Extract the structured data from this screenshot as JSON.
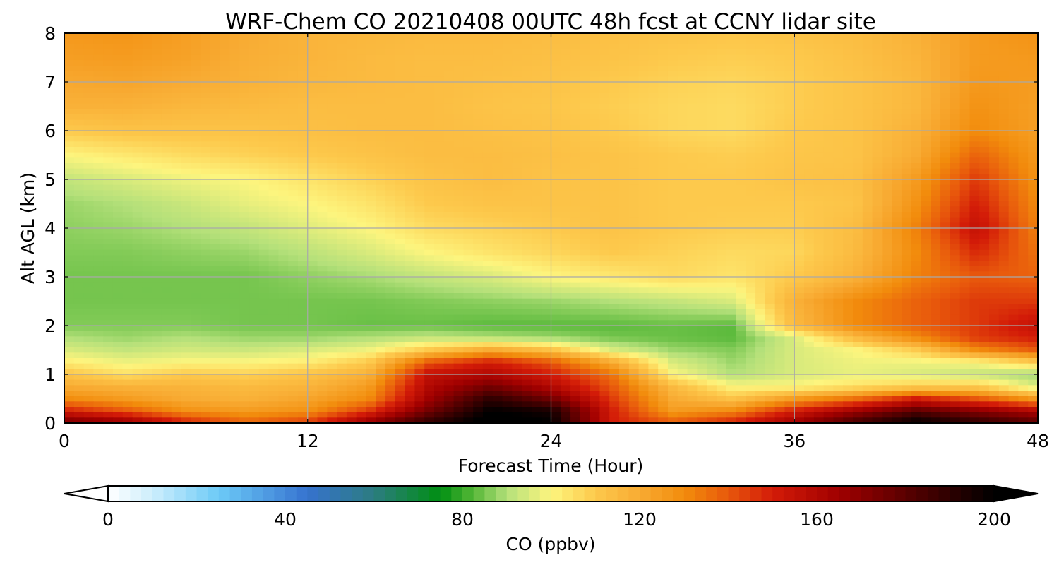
{
  "chart_data": {
    "type": "heatmap",
    "title": "WRF-Chem CO  20210408 00UTC 48h fcst at CCNY lidar site",
    "xlabel": "Forecast Time (Hour)",
    "ylabel": "Alt AGL (km)",
    "xlim": [
      0,
      48
    ],
    "ylim": [
      0,
      8
    ],
    "x_ticks": [
      0,
      12,
      24,
      36,
      48
    ],
    "y_ticks": [
      0,
      1,
      2,
      3,
      4,
      5,
      6,
      7,
      8
    ],
    "grid": true,
    "x": [
      0,
      3,
      6,
      9,
      12,
      15,
      18,
      21,
      24,
      27,
      30,
      33,
      36,
      39,
      42,
      45,
      48
    ],
    "y": [
      0,
      0.25,
      0.5,
      0.75,
      1,
      1.25,
      1.5,
      1.75,
      2,
      2.5,
      3,
      3.5,
      4,
      4.5,
      5,
      5.5,
      6,
      6.5,
      7,
      7.5,
      8
    ],
    "values": [
      [
        175,
        168,
        150,
        138,
        145,
        168,
        190,
        205,
        200,
        150,
        140,
        150,
        165,
        185,
        200,
        190,
        180
      ],
      [
        150,
        140,
        128,
        125,
        128,
        145,
        175,
        200,
        195,
        150,
        125,
        130,
        150,
        165,
        180,
        170,
        160
      ],
      [
        130,
        125,
        120,
        118,
        122,
        130,
        165,
        190,
        175,
        145,
        120,
        112,
        125,
        135,
        150,
        140,
        125
      ],
      [
        120,
        118,
        117,
        115,
        117,
        125,
        160,
        175,
        160,
        140,
        115,
        100,
        100,
        105,
        110,
        110,
        95
      ],
      [
        112,
        105,
        110,
        108,
        112,
        118,
        155,
        160,
        150,
        135,
        100,
        90,
        95,
        97,
        95,
        92,
        88
      ],
      [
        102,
        98,
        100,
        100,
        102,
        110,
        140,
        150,
        140,
        120,
        95,
        88,
        95,
        98,
        98,
        100,
        110
      ],
      [
        95,
        92,
        94,
        93,
        95,
        98,
        110,
        120,
        112,
        95,
        88,
        86,
        95,
        100,
        110,
        130,
        140
      ],
      [
        90,
        88,
        90,
        88,
        88,
        90,
        92,
        90,
        88,
        85,
        84,
        83,
        95,
        115,
        130,
        145,
        150
      ],
      [
        86,
        86,
        86,
        85,
        85,
        84,
        84,
        83,
        83,
        83,
        84,
        83,
        115,
        130,
        138,
        145,
        155
      ],
      [
        85,
        85,
        85,
        85,
        85,
        85,
        86,
        87,
        88,
        90,
        92,
        95,
        118,
        130,
        138,
        145,
        145
      ],
      [
        85,
        85,
        85,
        85,
        87,
        89,
        92,
        95,
        100,
        103,
        106,
        104,
        110,
        118,
        132,
        140,
        138
      ],
      [
        86,
        86,
        87,
        88,
        91,
        95,
        100,
        104,
        107,
        110,
        108,
        106,
        107,
        115,
        130,
        148,
        135
      ],
      [
        87,
        88,
        90,
        92,
        96,
        100,
        106,
        108,
        110,
        112,
        110,
        109,
        109,
        114,
        132,
        155,
        132
      ],
      [
        88,
        90,
        93,
        97,
        100,
        104,
        110,
        112,
        112,
        112,
        110,
        110,
        110,
        112,
        128,
        150,
        130
      ],
      [
        92,
        95,
        98,
        100,
        104,
        108,
        112,
        114,
        112,
        112,
        110,
        110,
        112,
        113,
        125,
        145,
        128
      ],
      [
        100,
        103,
        106,
        108,
        110,
        112,
        114,
        114,
        113,
        112,
        110,
        109,
        111,
        112,
        120,
        138,
        126
      ],
      [
        110,
        112,
        112,
        112,
        113,
        114,
        114,
        113,
        112,
        110,
        107,
        106,
        110,
        112,
        118,
        130,
        124
      ],
      [
        118,
        118,
        116,
        115,
        114,
        114,
        114,
        112,
        111,
        109,
        107,
        106,
        109,
        112,
        116,
        128,
        124
      ],
      [
        121,
        122,
        120,
        118,
        116,
        115,
        114,
        113,
        112,
        110,
        108,
        107,
        109,
        112,
        116,
        126,
        125
      ],
      [
        124,
        125,
        123,
        119,
        117,
        115,
        114,
        114,
        113,
        112,
        110,
        109,
        110,
        113,
        117,
        125,
        126
      ],
      [
        126,
        127,
        124,
        120,
        117,
        116,
        115,
        115,
        114,
        113,
        112,
        111,
        112,
        114,
        118,
        125,
        128
      ]
    ],
    "colorbar": {
      "label": "CO  (ppbv)",
      "min": 0,
      "max": 200,
      "ticks": [
        0,
        40,
        80,
        120,
        160,
        200
      ],
      "extend": "both",
      "color_stops": [
        {
          "v": 0,
          "c": "#ffffff"
        },
        {
          "v": 10,
          "c": "#cdeefc"
        },
        {
          "v": 25,
          "c": "#6ccaf7"
        },
        {
          "v": 45,
          "c": "#3672cf"
        },
        {
          "v": 60,
          "c": "#2c7c80"
        },
        {
          "v": 75,
          "c": "#008f12"
        },
        {
          "v": 82,
          "c": "#50b534"
        },
        {
          "v": 90,
          "c": "#b4e07a"
        },
        {
          "v": 100,
          "c": "#fdf57e"
        },
        {
          "v": 110,
          "c": "#fdc94c"
        },
        {
          "v": 120,
          "c": "#f8ab33"
        },
        {
          "v": 130,
          "c": "#f28c0c"
        },
        {
          "v": 140,
          "c": "#e8580c"
        },
        {
          "v": 150,
          "c": "#d31b08"
        },
        {
          "v": 165,
          "c": "#a00000"
        },
        {
          "v": 180,
          "c": "#5a0000"
        },
        {
          "v": 200,
          "c": "#000000"
        }
      ]
    }
  }
}
